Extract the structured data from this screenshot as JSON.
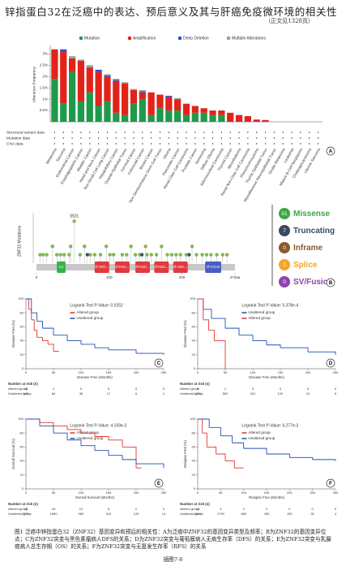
{
  "header": {
    "title": "锌指蛋白32在泛癌中的表达、预后意义及其与肝癌免疫微环境的相关性",
    "note": "（正文见1328页）"
  },
  "chart_data": [
    {
      "type": "bar",
      "panel": "A",
      "stacked": true,
      "ylabel": "Alteration Frequency",
      "categories": [
        "Melanoma",
        "Sarcoma",
        "Endometrial Cancer",
        "Esophagogastric Cancer",
        "Bladder Cancer",
        "Head and Neck Cancer",
        "Non-Small Cell Lung Cancer",
        "Hepatobiliary Cancer",
        "Ovarian Epithelial Tumor",
        "Cervical Cancer",
        "Colorectal Cancer",
        "Breast Cancer",
        "Non-Seminomatous Germ Cell Tumor",
        "Glioma",
        "Pancreatic Cancer",
        "Renal Clear Cell Carcinoma",
        "Prostate Cancer",
        "Seminoma",
        "Diffuse Glioma",
        "Adrenocortical Carcinoma",
        "Thyroid Cancer",
        "Mesothelioma",
        "Renal Non-Clear Cell Carcinoma",
        "Pheochromocytoma",
        "Thymic Epithelial Tumor",
        "Miscellaneous Neuroepithelial Tumor",
        "Ocular Melanoma",
        "Leukemia",
        "Mature B-Cell Neoplasms",
        "Cholangiocarcinoma",
        "Uterine Sarcoma"
      ],
      "series": [
        {
          "name": "Mutation",
          "color": "#1e9a4b",
          "values": [
            1.9,
            0.8,
            2.2,
            0.9,
            1.3,
            0.7,
            0.9,
            0.4,
            0.3,
            0.8,
            1.0,
            0.3,
            0.6,
            0.5,
            0.5,
            0.3,
            0.4,
            0.4,
            0.3,
            0.3,
            0,
            0,
            0,
            0,
            0,
            0,
            0,
            0,
            0,
            0,
            0
          ]
        },
        {
          "name": "Amplification",
          "color": "#e2231a",
          "values": [
            1.3,
            2.3,
            0.6,
            1.8,
            1.1,
            1.5,
            1.1,
            1.4,
            1.4,
            0.6,
            0.3,
            1.0,
            0.6,
            0.6,
            0.5,
            0.5,
            0.3,
            0.2,
            0.2,
            0.2,
            0.4,
            0.3,
            0.25,
            0.1,
            0.08,
            0,
            0,
            0,
            0,
            0,
            0
          ]
        },
        {
          "name": "Deep Deletion",
          "color": "#2c4fd6",
          "values": [
            0,
            0.1,
            0,
            0,
            0,
            0.1,
            0.05,
            0.05,
            0,
            0,
            0.05,
            0,
            0,
            0.05,
            0,
            0,
            0,
            0,
            0,
            0,
            0,
            0,
            0,
            0,
            0,
            0,
            0,
            0,
            0,
            0,
            0
          ]
        },
        {
          "name": "Multiple Alterations",
          "color": "#9e9e9e",
          "values": [
            0,
            0,
            0.1,
            0.05,
            0.1,
            0,
            0.05,
            0.05,
            0.05,
            0.05,
            0.05,
            0,
            0,
            0,
            0.05,
            0,
            0,
            0,
            0,
            0,
            0,
            0,
            0,
            0,
            0,
            0,
            0,
            0,
            0,
            0,
            0
          ]
        }
      ],
      "ylim": [
        0,
        3.3
      ],
      "yticks": [
        {
          "value": 0.5,
          "label": "0.5%"
        },
        {
          "value": 1,
          "label": "1%"
        },
        {
          "value": 1.5,
          "label": "1.5%"
        },
        {
          "value": 2,
          "label": "2%"
        },
        {
          "value": 2.5,
          "label": "2.5%"
        },
        {
          "value": 3,
          "label": "3%"
        }
      ],
      "rows": [
        "Structural variant data",
        "Mutation data",
        "CNA data"
      ]
    },
    {
      "type": "lollipop",
      "panel": "B",
      "ylabel": "ZNF32 Mutations",
      "annotation": "S52L",
      "xlim": [
        0,
        273
      ],
      "ylim": [
        0,
        6
      ],
      "xticks": [
        0,
        100,
        200,
        {
          "value": 273,
          "label": "273aa"
        }
      ],
      "series": [
        {
          "color": "#7cc242",
          "x": [
            5,
            9,
            14,
            22,
            28,
            33,
            38,
            45,
            47,
            52,
            60,
            66,
            74,
            80,
            88,
            96,
            101,
            106,
            118,
            124,
            130,
            136,
            142,
            150,
            152,
            158,
            165,
            172,
            180,
            186,
            192,
            198,
            206,
            214,
            220,
            228,
            234,
            240,
            248,
            256,
            262
          ],
          "values": [
            1,
            1,
            1,
            2,
            1,
            1,
            1,
            1,
            2,
            5,
            1,
            2,
            1,
            1,
            1,
            2,
            1,
            1,
            1,
            1,
            2,
            1,
            1,
            2,
            1,
            1,
            1,
            2,
            1,
            1,
            1,
            1,
            1,
            2,
            1,
            1,
            1,
            1,
            1,
            1,
            1
          ]
        },
        {
          "color": "#3b4a63",
          "x": [
            70,
            145,
            210
          ],
          "values": [
            1,
            1,
            1
          ]
        }
      ],
      "domains": [
        {
          "start": 28,
          "end": 40,
          "label": "C2",
          "color": "#33b24a"
        },
        {
          "start": 80,
          "end": 100,
          "label": "zf-H2C...",
          "color": "#e03a3e"
        },
        {
          "start": 108,
          "end": 128,
          "label": "zf-H2C...",
          "color": "#e03a3e"
        },
        {
          "start": 136,
          "end": 156,
          "label": "zf-H2C...",
          "color": "#e03a3e"
        },
        {
          "start": 162,
          "end": 182,
          "label": "zf-H2C...",
          "color": "#e03a3e"
        },
        {
          "start": 188,
          "end": 208,
          "label": "zf-H2C...",
          "color": "#e03a3e"
        },
        {
          "start": 232,
          "end": 254,
          "label": "zf-C2H2",
          "color": "#4a5bc4"
        }
      ],
      "legend": [
        {
          "count": 51,
          "label": "Missense",
          "color": "#3aa843"
        },
        {
          "count": 7,
          "label": "Truncating",
          "color": "#3b4a63"
        },
        {
          "count": 0,
          "label": "Inframe",
          "color": "#8b5a2b"
        },
        {
          "count": 1,
          "label": "Splice",
          "color": "#f5a623"
        },
        {
          "count": 0,
          "label": "SV/Fusion",
          "color": "#8e44ad"
        }
      ]
    },
    {
      "type": "line",
      "step": true,
      "panel": "C",
      "annotation": "Logrank Test P-Value: 0.0252",
      "xlabel": "Disease Free (Months)",
      "ylabel": "Disease Free (%)",
      "xlim": [
        0,
        250
      ],
      "xticks": [
        0,
        50,
        100,
        150,
        200,
        250
      ],
      "ylim": [
        0,
        100
      ],
      "yticks": [
        0,
        20,
        40,
        60,
        80,
        100
      ],
      "series": [
        {
          "name": "Altered group",
          "color": "#e3342f",
          "x": [
            0,
            5,
            10,
            15,
            20,
            30,
            40,
            50,
            60
          ],
          "values": [
            100,
            85,
            70,
            55,
            45,
            40,
            35,
            25,
            25
          ]
        },
        {
          "name": "Unaltered group",
          "color": "#1f4fb4",
          "x": [
            0,
            10,
            20,
            30,
            50,
            75,
            100,
            125,
            150,
            200,
            250
          ],
          "values": [
            100,
            80,
            68,
            58,
            48,
            40,
            35,
            30,
            27,
            22,
            20
          ]
        }
      ],
      "at_risk": {
        "label": "Number at risk (n)",
        "rows": [
          {
            "name": "Altered group",
            "values": [
              23,
              4,
              0,
              0,
              0,
              0
            ]
          },
          {
            "name": "Unaltered group",
            "values": [
              198,
              84,
              38,
              17,
              6,
              1
            ]
          }
        ]
      }
    },
    {
      "type": "line",
      "step": true,
      "panel": "D",
      "annotation": "Logrank Test P-Value: 5.378e-4",
      "xlabel": "Disease Free (Months)",
      "ylabel": "Disease Free (%)",
      "xlim": [
        0,
        250
      ],
      "xticks": [
        0,
        50,
        100,
        150,
        200,
        250
      ],
      "ylim": [
        0,
        100
      ],
      "yticks": [
        0,
        20,
        40,
        60,
        80,
        100
      ],
      "series": [
        {
          "name": "Unaltered group",
          "color": "#1f4fb4",
          "x": [
            0,
            10,
            25,
            50,
            75,
            100,
            125,
            150,
            200,
            250
          ],
          "values": [
            100,
            85,
            72,
            58,
            48,
            40,
            34,
            30,
            24,
            20
          ]
        },
        {
          "name": "Altered group",
          "color": "#e3342f",
          "x": [
            0,
            10,
            20,
            30,
            45,
            50
          ],
          "values": [
            100,
            70,
            55,
            40,
            40,
            0
          ]
        }
      ],
      "at_risk": {
        "label": "Number at risk (n)",
        "rows": [
          {
            "name": "Altered group",
            "values": [
              9,
              1,
              0,
              0,
              0,
              0
            ]
          },
          {
            "name": "Unaltered group",
            "values": [
              1276,
              562,
              251,
              102,
              31,
              6
            ]
          }
        ]
      }
    },
    {
      "type": "line",
      "step": true,
      "panel": "E",
      "annotation": "Logrank Test P-Value: 4.159e-3",
      "xlabel": "Overall Survival (Months)",
      "ylabel": "Overall Survival (%)",
      "xlim": [
        0,
        250
      ],
      "xticks": [
        0,
        50,
        100,
        150,
        200,
        250
      ],
      "ylim": [
        0,
        100
      ],
      "yticks": [
        0,
        20,
        40,
        60,
        80,
        100
      ],
      "series": [
        {
          "name": "Altered group",
          "color": "#e3342f",
          "x": [
            0,
            25,
            50,
            75,
            100,
            125,
            150,
            175,
            200,
            210
          ],
          "values": [
            100,
            95,
            90,
            85,
            80,
            75,
            70,
            60,
            30,
            30
          ]
        },
        {
          "name": "Unaltered group",
          "color": "#1f4fb4",
          "x": [
            0,
            25,
            50,
            75,
            100,
            125,
            150,
            175,
            200,
            250
          ],
          "values": [
            100,
            90,
            80,
            70,
            62,
            55,
            48,
            42,
            36,
            30
          ]
        }
      ],
      "at_risk": {
        "label": "Number at risk (n)",
        "rows": [
          {
            "name": "Altered group",
            "values": [
              23,
              18,
              12,
              6,
              2,
              0
            ]
          },
          {
            "name": "Unaltered group",
            "values": [
              2770,
              1850,
              980,
              412,
              120,
              14
            ]
          }
        ]
      }
    },
    {
      "type": "line",
      "step": true,
      "panel": "F",
      "annotation": "Logrank Test P-Value: 6.277e-3",
      "xlabel": "Relapse Free (Months)",
      "ylabel": "Relapse Free (%)",
      "xlim": [
        0,
        300
      ],
      "xticks": [
        0,
        50,
        100,
        150,
        200,
        250,
        300
      ],
      "ylim": [
        0,
        100
      ],
      "yticks": [
        0,
        20,
        40,
        60,
        80,
        100
      ],
      "series": [
        {
          "name": "Altered group",
          "color": "#e3342f",
          "x": [
            0,
            10,
            20,
            40,
            60,
            80,
            100
          ],
          "values": [
            100,
            80,
            60,
            50,
            40,
            30,
            30
          ]
        },
        {
          "name": "Unaltered group",
          "color": "#1f4fb4",
          "x": [
            0,
            25,
            50,
            75,
            100,
            150,
            200,
            250,
            300
          ],
          "values": [
            100,
            88,
            76,
            66,
            58,
            50,
            45,
            42,
            40
          ]
        }
      ],
      "at_risk": {
        "label": "Number at risk (n)",
        "rows": [
          {
            "name": "Altered group",
            "values": [
              21,
              9,
              3,
              0,
              0,
              0,
              0
            ]
          },
          {
            "name": "Unaltered group",
            "values": [
              2609,
              1790,
              980,
              430,
              150,
              32,
              4
            ]
          }
        ]
      }
    }
  ],
  "caption": "图1  泛癌中锌指蛋白32（ZNF32）基因变异和预后的相关性：A为泛癌中ZNF32的基因变异类型及频率；B为ZNF32的基因变异位点；C为ZNF32突变与黑色素瘤病人DFS的关系；D为ZNF32突变与葡萄膜病人无病生存率（DFS）的关系；E为ZNF32突变与乳腺癌病人总生存期（OS）的关系；F为ZNF32突变与无复发生存率（RFS）的关系",
  "footer": "插图7-6"
}
